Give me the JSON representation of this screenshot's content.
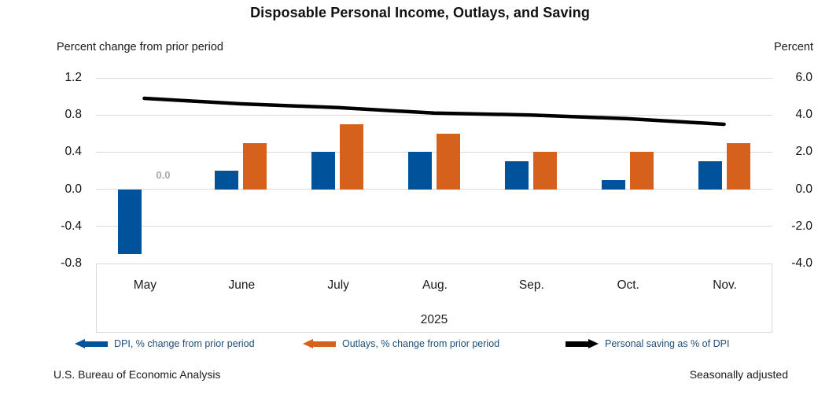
{
  "title": "Disposable Personal Income, Outlays, and Saving",
  "footer": {
    "source": "U.S. Bureau of Economic Analysis",
    "note": "Seasonally adjusted"
  },
  "colors": {
    "dpi": "#00529B",
    "outlays": "#D5611C",
    "saving": "#000000",
    "legend_text": "#1F4E79",
    "grid": "#D9D9D9",
    "annotation": "#A3A9B3",
    "text": "#1A1A1A"
  },
  "chart_data": {
    "type": "combo-bar-line",
    "categories": [
      "May",
      "June",
      "July",
      "Aug.",
      "Sep.",
      "Oct.",
      "Nov."
    ],
    "year_label": "2025",
    "series": [
      {
        "name": "DPI, % change from prior period",
        "type": "bar",
        "axis": "left",
        "color": "#00529B",
        "values": [
          -0.7,
          0.2,
          0.4,
          0.4,
          0.3,
          0.1,
          0.3
        ]
      },
      {
        "name": "Outlays, % change from prior period",
        "type": "bar",
        "axis": "left",
        "color": "#D5611C",
        "values": [
          0.0,
          0.5,
          0.7,
          0.6,
          0.4,
          0.4,
          0.5
        ]
      },
      {
        "name": "Personal saving as % of DPI",
        "type": "line",
        "axis": "right",
        "color": "#000000",
        "values": [
          4.9,
          4.6,
          4.4,
          4.1,
          4.0,
          3.8,
          3.5
        ]
      }
    ],
    "left_axis": {
      "label": "Percent change from prior period",
      "ticks": [
        "1.2",
        "0.8",
        "0.4",
        "0.0",
        "-0.4",
        "-0.8"
      ],
      "min": -0.8,
      "max": 1.2
    },
    "right_axis": {
      "label": "Percent",
      "ticks": [
        "6.0",
        "4.0",
        "2.0",
        "0.0",
        "-2.0",
        "-4.0"
      ],
      "min": -4.0,
      "max": 6.0
    },
    "annotations": [
      {
        "text": "0.0",
        "category": "May",
        "series": "Outlays, % change from prior period",
        "month_index": 0
      }
    ],
    "grid": true,
    "legend_position": "bottom"
  }
}
